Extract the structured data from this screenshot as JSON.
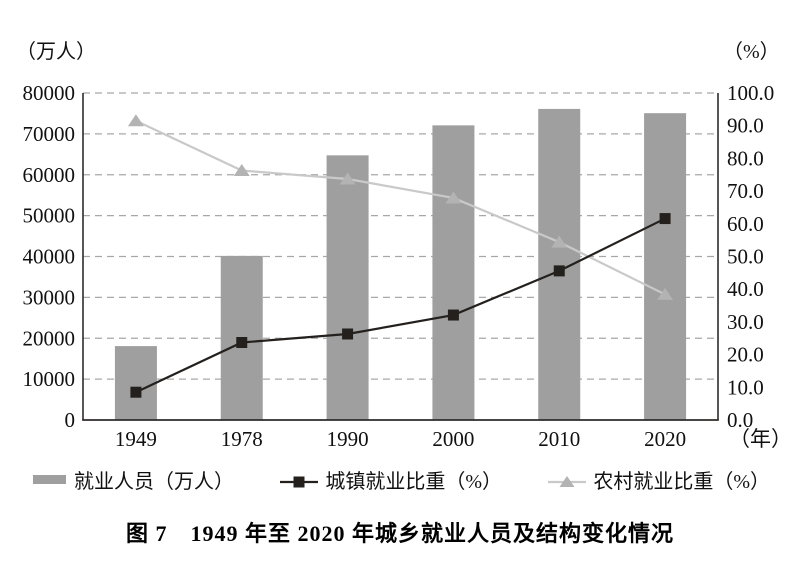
{
  "figure": {
    "title": "图 7　1949 年至 2020 年城乡就业人员及结构变化情况"
  },
  "chart_data": {
    "type": "bar",
    "subtype": "combo-bar-line-dual-axis",
    "title": "图 7　1949 年至 2020 年城乡就业人员及结构变化情况",
    "categories": [
      "1949",
      "1978",
      "1990",
      "2000",
      "2010",
      "2020"
    ],
    "series": [
      {
        "name": "就业人员（万人）",
        "type": "bar",
        "axis": "left",
        "values": [
          18082,
          40152,
          64749,
          72085,
          76105,
          75064
        ],
        "color": "#9f9f9f"
      },
      {
        "name": "城镇就业比重（%）",
        "type": "line",
        "axis": "right",
        "marker": "square",
        "values": [
          8.5,
          23.7,
          26.3,
          32.1,
          45.6,
          61.6
        ],
        "color": "#24201d",
        "marker_color": "#24201d"
      },
      {
        "name": "农村就业比重（%）",
        "type": "line",
        "axis": "right",
        "marker": "triangle",
        "values": [
          91.5,
          76.3,
          73.7,
          67.9,
          54.4,
          38.4
        ],
        "color": "#c9c9c9",
        "marker_color": "#b3b3b3"
      }
    ],
    "xlabel": "（年）",
    "ylabel_left": "（万人）",
    "ylabel_right": "（%）",
    "left_axis": {
      "min": 0,
      "max": 80000,
      "step": 10000,
      "tick_labels": [
        "0",
        "10000",
        "20000",
        "30000",
        "40000",
        "50000",
        "60000",
        "70000",
        "80000"
      ]
    },
    "right_axis": {
      "min": 0,
      "max": 100,
      "step": 10,
      "tick_labels": [
        "0.0",
        "10.0",
        "20.0",
        "30.0",
        "40.0",
        "50.0",
        "60.0",
        "70.0",
        "80.0",
        "90.0",
        "100.0"
      ]
    },
    "grid": "dashed-horizontal",
    "legend_position": "bottom",
    "colors": {
      "grid": "#a8a8a8",
      "axis": "#2e2b29",
      "text": "#111111",
      "background": "#ffffff"
    }
  },
  "legend": {
    "items": [
      {
        "label": "就业人员（万人）",
        "swatch": "bar"
      },
      {
        "label": "城镇就业比重（%）",
        "swatch": "line-square"
      },
      {
        "label": "农村就业比重（%）",
        "swatch": "line-triangle"
      }
    ]
  }
}
